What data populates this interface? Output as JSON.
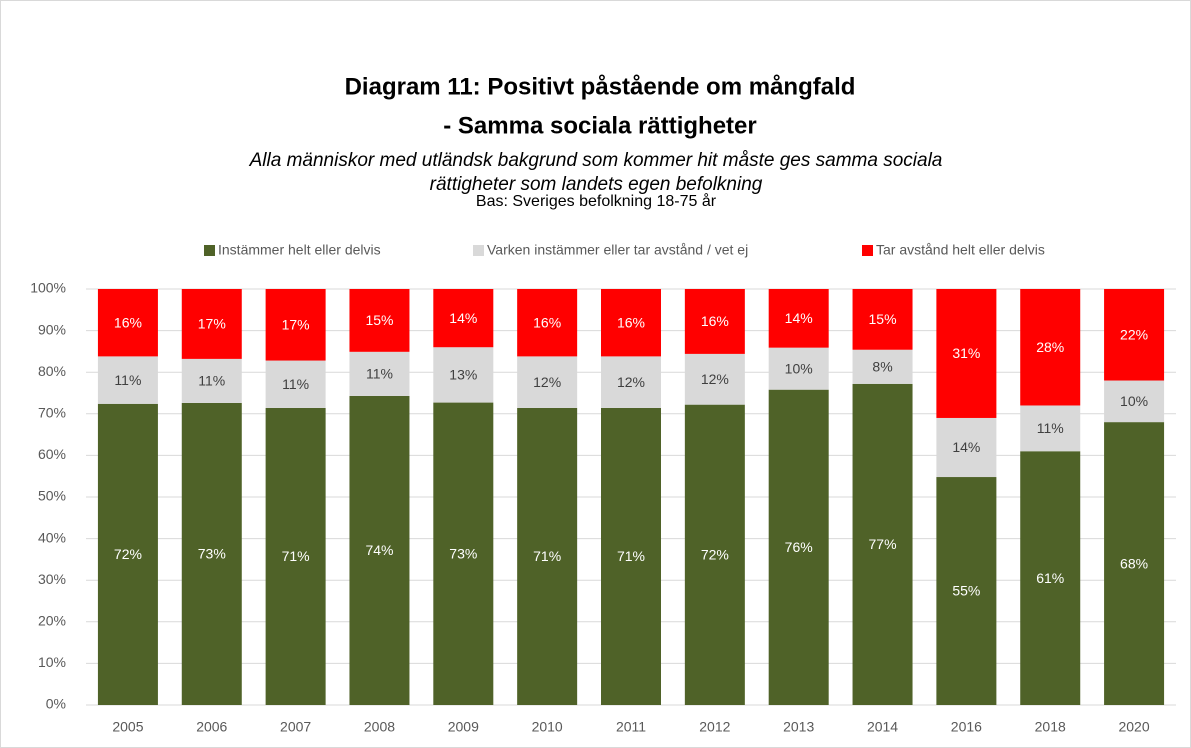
{
  "chart_data": {
    "type": "stacked_bar",
    "title": [
      "Diagram 11: Positivt påstående om mångfald",
      "- Samma sociala rättigheter"
    ],
    "subtitle": [
      "Alla människor med utländsk bakgrund som kommer hit måste ges samma sociala",
      "rättigheter som landets egen befolkning"
    ],
    "caption": "Bas: Sveriges befolkning 18-75 år",
    "categories": [
      "2005",
      "2006",
      "2007",
      "2008",
      "2009",
      "2010",
      "2011",
      "2012",
      "2013",
      "2014",
      "2016",
      "2018",
      "2020"
    ],
    "series": [
      {
        "name": "Instämmer helt eller delvis",
        "color": "#4f6228",
        "values": [
          72.4,
          72.6,
          71.4,
          74.3,
          72.7,
          71.4,
          71.4,
          72.2,
          75.8,
          77.2,
          54.8,
          61.0,
          68.0
        ],
        "value_labels": [
          "72%",
          "73%",
          "71%",
          "74%",
          "73%",
          "71%",
          "71%",
          "72%",
          "76%",
          "77%",
          "55%",
          "61%",
          "68%"
        ]
      },
      {
        "name": "Varken instämmer eller tar avstånd / vet ej",
        "color": "#d9d9d9",
        "values": [
          11.4,
          10.6,
          11.4,
          10.6,
          13.3,
          12.4,
          12.4,
          12.2,
          10.1,
          8.2,
          14.2,
          11.0,
          10.0
        ],
        "value_labels": [
          "11%",
          "11%",
          "11%",
          "11%",
          "13%",
          "12%",
          "12%",
          "12%",
          "10%",
          "8%",
          "14%",
          "11%",
          "10%"
        ]
      },
      {
        "name": "Tar avstånd helt eller delvis",
        "color": "#ff0000",
        "values": [
          16.2,
          16.8,
          17.2,
          15.1,
          14.0,
          16.2,
          16.2,
          15.6,
          14.1,
          14.6,
          31.0,
          28.0,
          22.0
        ],
        "value_labels": [
          "16%",
          "17%",
          "17%",
          "15%",
          "14%",
          "16%",
          "16%",
          "16%",
          "14%",
          "15%",
          "31%",
          "28%",
          "22%"
        ]
      }
    ],
    "ylim": [
      0,
      100
    ],
    "yticks": [
      {
        "value": 0,
        "label": "0%"
      },
      {
        "value": 10,
        "label": "10%"
      },
      {
        "value": 20,
        "label": "20%"
      },
      {
        "value": 30,
        "label": "30%"
      },
      {
        "value": 40,
        "label": "40%"
      },
      {
        "value": 50,
        "label": "50%"
      },
      {
        "value": 60,
        "label": "60%"
      },
      {
        "value": 70,
        "label": "70%"
      },
      {
        "value": 80,
        "label": "80%"
      },
      {
        "value": 90,
        "label": "90%"
      },
      {
        "value": 100,
        "label": "100%"
      }
    ],
    "grid": true,
    "legend": "top"
  }
}
